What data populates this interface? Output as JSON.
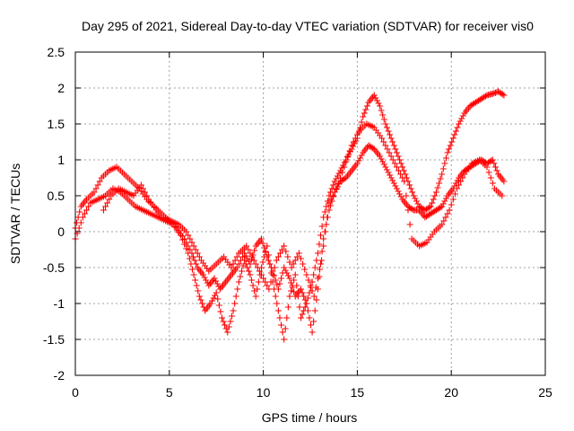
{
  "chart_data": {
    "type": "scatter",
    "title": "Day 295 of 2021, Sidereal Day-to-day VTEC variation (SDTVAR) for receiver vis0",
    "xlabel": "GPS time / hours",
    "ylabel": "SDTVAR / TECUs",
    "xlim": [
      0,
      25
    ],
    "ylim": [
      -2,
      2.5
    ],
    "xticks": [
      0,
      5,
      10,
      15,
      20,
      25
    ],
    "yticks": [
      -2,
      -1.5,
      -1,
      -0.5,
      0,
      0.5,
      1,
      1.5,
      2,
      2.5
    ],
    "xtick_labels": [
      "0",
      "5",
      "10",
      "15",
      "20",
      "25"
    ],
    "ytick_labels": [
      "-2",
      "-1.5",
      "-1",
      "-0.5",
      "0",
      "0.5",
      "1",
      "1.5",
      "2",
      "2.5"
    ],
    "grid": true,
    "marker": "plus",
    "color": "#ff0000",
    "series": [
      {
        "x": [
          0.0,
          0.3,
          0.6,
          1.0,
          1.4,
          1.8,
          2.2,
          2.6,
          3.0,
          3.4,
          3.8,
          4.2,
          4.6,
          5.0,
          5.4,
          5.8,
          6.2,
          6.5,
          6.8,
          7.1,
          7.4,
          7.7,
          8.0,
          8.3,
          8.6,
          9.0,
          9.3,
          9.6,
          9.9,
          10.2,
          10.5,
          10.8,
          11.1,
          11.4,
          11.7,
          12.0,
          12.3,
          12.6,
          12.9,
          13.2,
          13.5,
          13.8,
          14.1,
          14.4,
          14.7,
          15.0,
          15.3,
          15.6,
          15.9,
          16.2,
          16.5,
          16.8,
          17.1,
          17.4,
          17.7,
          18.0,
          18.3,
          18.6,
          18.9,
          19.2,
          19.5,
          19.8,
          20.1,
          20.4,
          20.7,
          21.0,
          21.3,
          21.6,
          21.9,
          22.2,
          22.5,
          22.8
        ],
        "y": [
          0.05,
          0.35,
          0.45,
          0.55,
          0.75,
          0.85,
          0.9,
          0.8,
          0.7,
          0.6,
          0.45,
          0.35,
          0.25,
          0.15,
          0.05,
          -0.1,
          -0.3,
          -0.5,
          -0.6,
          -0.75,
          -0.65,
          -0.8,
          -0.7,
          -0.6,
          -0.5,
          -0.3,
          -0.45,
          -0.2,
          -0.1,
          -0.35,
          -0.55,
          -0.8,
          -0.5,
          -0.65,
          -0.9,
          -0.8,
          -1.0,
          -0.7,
          -0.3,
          0.2,
          0.5,
          0.7,
          0.85,
          1.0,
          1.15,
          1.3,
          1.6,
          1.8,
          1.9,
          1.75,
          1.5,
          1.3,
          1.1,
          0.9,
          0.7,
          0.5,
          0.35,
          0.3,
          0.35,
          0.55,
          0.8,
          1.1,
          1.3,
          1.5,
          1.65,
          1.75,
          1.8,
          1.85,
          1.9,
          1.92,
          1.95,
          1.9
        ]
      },
      {
        "x": [
          0.0,
          0.4,
          0.8,
          1.2,
          1.6,
          2.0,
          2.4,
          2.8,
          3.2,
          3.6,
          4.0,
          4.4,
          4.8,
          5.2,
          5.6,
          6.0,
          6.3,
          6.6,
          6.9,
          7.2,
          7.5,
          7.8,
          8.1,
          8.4,
          8.7,
          9.0,
          9.3,
          9.6,
          9.9,
          10.2,
          10.5,
          10.8,
          11.1,
          11.4,
          11.7,
          12.0,
          12.3,
          12.6,
          12.9,
          13.2,
          13.5,
          13.8,
          14.1,
          14.4,
          14.7,
          15.0,
          15.3,
          15.6,
          15.9,
          16.2,
          16.5,
          16.8,
          17.1,
          17.4,
          17.7,
          18.0,
          18.3,
          18.6,
          18.9,
          19.2,
          19.5,
          19.8,
          20.1,
          20.4,
          20.7,
          21.0,
          21.3,
          21.6,
          21.9,
          22.2,
          22.5,
          22.8
        ],
        "y": [
          -0.1,
          0.2,
          0.4,
          0.45,
          0.5,
          0.6,
          0.55,
          0.45,
          0.35,
          0.3,
          0.25,
          0.2,
          0.15,
          0.1,
          -0.05,
          -0.3,
          -0.6,
          -0.9,
          -1.1,
          -1.0,
          -0.85,
          -1.2,
          -1.4,
          -1.1,
          -0.7,
          -0.4,
          -0.6,
          -0.9,
          -0.5,
          -0.2,
          -0.7,
          -1.1,
          -1.5,
          -0.9,
          -0.6,
          -1.2,
          -1.0,
          -1.4,
          -0.8,
          -0.1,
          0.3,
          0.55,
          0.7,
          0.75,
          0.85,
          0.95,
          1.1,
          1.2,
          1.15,
          1.05,
          0.9,
          0.75,
          0.6,
          0.45,
          0.35,
          0.3,
          0.3,
          0.2,
          0.25,
          0.3,
          0.35,
          0.5,
          0.6,
          0.75,
          0.85,
          0.9,
          0.95,
          1.0,
          0.95,
          1.0,
          0.8,
          0.7
        ]
      },
      {
        "x": [
          1.5,
          1.9,
          2.3,
          2.7,
          3.1,
          3.5,
          3.9,
          4.3,
          4.7,
          5.1,
          5.5,
          5.9,
          6.3,
          6.7,
          7.1,
          7.5,
          7.9,
          8.3,
          8.7,
          9.1,
          9.5,
          9.9,
          10.3,
          10.7,
          11.1,
          11.5,
          11.9,
          12.3,
          12.7,
          13.1,
          13.5,
          13.9,
          14.3,
          14.7,
          15.1,
          15.5,
          15.9,
          16.3,
          16.7,
          17.1,
          17.5,
          17.9,
          18.3,
          18.7,
          19.1,
          19.5,
          19.9,
          20.3,
          20.7,
          21.1,
          21.5,
          21.9,
          22.3,
          22.7
        ],
        "y": [
          0.3,
          0.5,
          0.6,
          0.55,
          0.5,
          0.65,
          0.45,
          0.3,
          0.2,
          0.15,
          0.1,
          0.0,
          -0.2,
          -0.4,
          -0.55,
          -0.45,
          -0.35,
          -0.5,
          -0.3,
          -0.2,
          -0.4,
          -0.6,
          -0.8,
          -0.4,
          -0.2,
          -0.5,
          -0.3,
          -0.6,
          -0.9,
          -0.4,
          0.4,
          0.6,
          0.9,
          1.2,
          1.4,
          1.5,
          1.45,
          1.3,
          1.1,
          0.9,
          0.7,
          -0.1,
          -0.2,
          -0.15,
          0.0,
          0.1,
          0.3,
          0.6,
          0.8,
          0.95,
          1.0,
          0.9,
          0.6,
          0.5
        ]
      }
    ]
  }
}
